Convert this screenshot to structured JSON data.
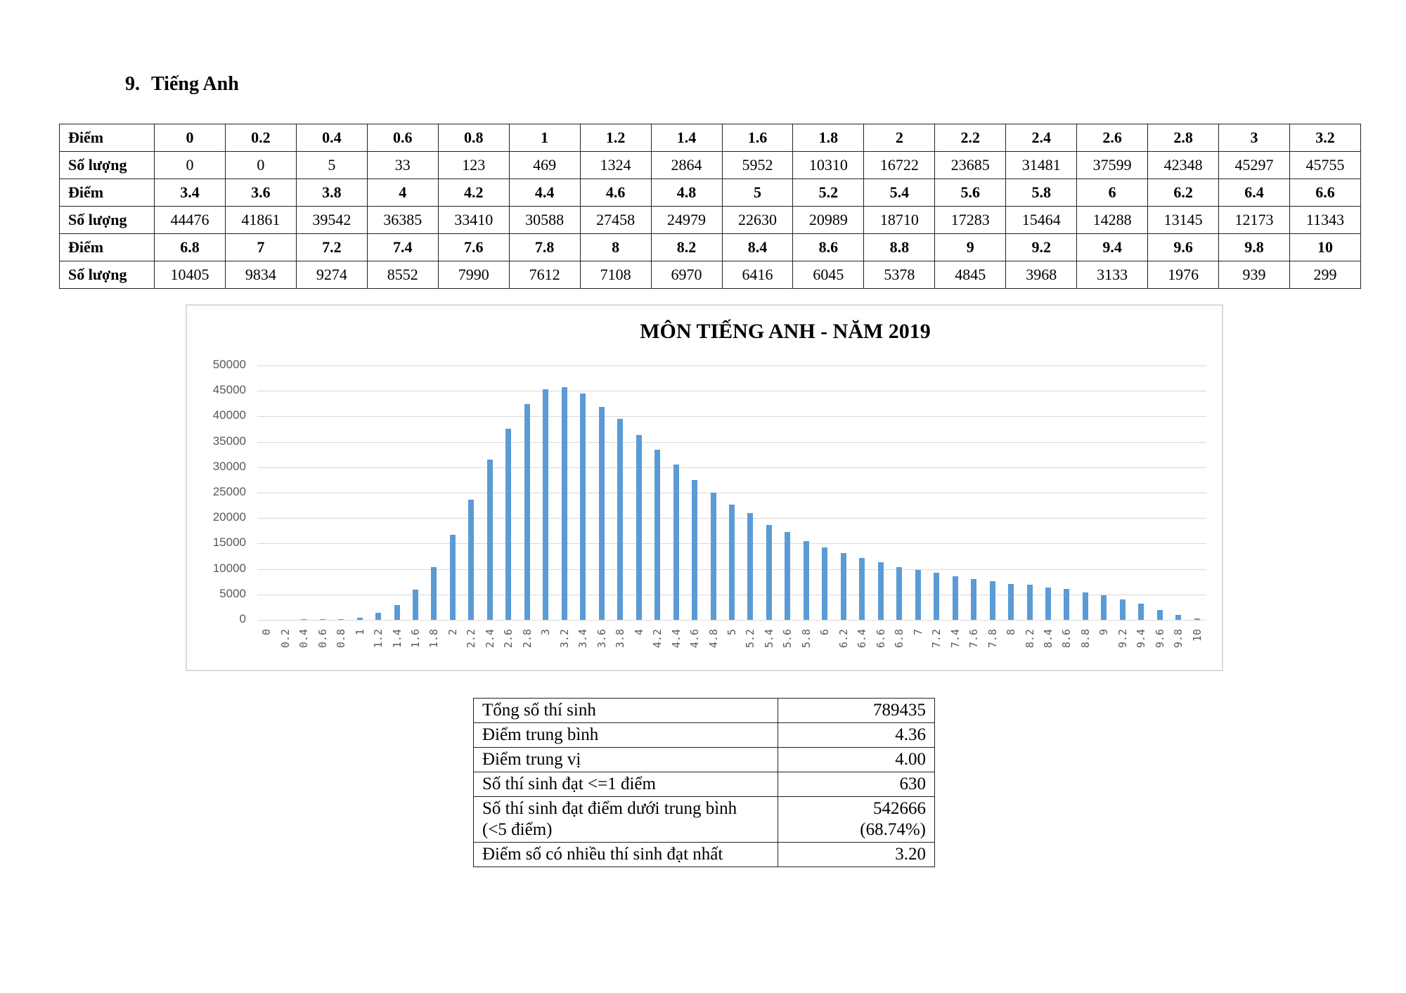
{
  "heading": {
    "number": "9.",
    "title": "Tiếng Anh"
  },
  "score_table": {
    "row_label_score": "Điểm",
    "row_label_count": "Số lượng",
    "blocks": [
      {
        "scores": [
          "0",
          "0.2",
          "0.4",
          "0.6",
          "0.8",
          "1",
          "1.2",
          "1.4",
          "1.6",
          "1.8",
          "2",
          "2.2",
          "2.4",
          "2.6",
          "2.8",
          "3",
          "3.2"
        ],
        "counts": [
          "0",
          "0",
          "5",
          "33",
          "123",
          "469",
          "1324",
          "2864",
          "5952",
          "10310",
          "16722",
          "23685",
          "31481",
          "37599",
          "42348",
          "45297",
          "45755"
        ]
      },
      {
        "scores": [
          "3.4",
          "3.6",
          "3.8",
          "4",
          "4.2",
          "4.4",
          "4.6",
          "4.8",
          "5",
          "5.2",
          "5.4",
          "5.6",
          "5.8",
          "6",
          "6.2",
          "6.4",
          "6.6"
        ],
        "counts": [
          "44476",
          "41861",
          "39542",
          "36385",
          "33410",
          "30588",
          "27458",
          "24979",
          "22630",
          "20989",
          "18710",
          "17283",
          "15464",
          "14288",
          "13145",
          "12173",
          "11343"
        ]
      },
      {
        "scores": [
          "6.8",
          "7",
          "7.2",
          "7.4",
          "7.6",
          "7.8",
          "8",
          "8.2",
          "8.4",
          "8.6",
          "8.8",
          "9",
          "9.2",
          "9.4",
          "9.6",
          "9.8",
          "10"
        ],
        "counts": [
          "10405",
          "9834",
          "9274",
          "8552",
          "7990",
          "7612",
          "7108",
          "6970",
          "6416",
          "6045",
          "5378",
          "4845",
          "3968",
          "3133",
          "1976",
          "939",
          "299"
        ]
      }
    ]
  },
  "chart_data": {
    "type": "bar",
    "title": "MÔN TIẾNG ANH - NĂM 2019",
    "xlabel": "",
    "ylabel": "",
    "ylim": [
      0,
      50000
    ],
    "yticks": [
      "50000",
      "45000",
      "40000",
      "35000",
      "30000",
      "25000",
      "20000",
      "15000",
      "10000",
      "5000",
      "0"
    ],
    "grid": true,
    "legend": null,
    "bar_color": "#5b9bd5",
    "categories": [
      "0",
      "0.2",
      "0.4",
      "0.6",
      "0.8",
      "1",
      "1.2",
      "1.4",
      "1.6",
      "1.8",
      "2",
      "2.2",
      "2.4",
      "2.6",
      "2.8",
      "3",
      "3.2",
      "3.4",
      "3.6",
      "3.8",
      "4",
      "4.2",
      "4.4",
      "4.6",
      "4.8",
      "5",
      "5.2",
      "5.4",
      "5.6",
      "5.8",
      "6",
      "6.2",
      "6.4",
      "6.6",
      "6.8",
      "7",
      "7.2",
      "7.4",
      "7.6",
      "7.8",
      "8",
      "8.2",
      "8.4",
      "8.6",
      "8.8",
      "9",
      "9.2",
      "9.4",
      "9.6",
      "9.8",
      "10"
    ],
    "values": [
      0,
      0,
      5,
      33,
      123,
      469,
      1324,
      2864,
      5952,
      10310,
      16722,
      23685,
      31481,
      37599,
      42348,
      45297,
      45755,
      44476,
      41861,
      39542,
      36385,
      33410,
      30588,
      27458,
      24979,
      22630,
      20989,
      18710,
      17283,
      15464,
      14288,
      13145,
      12173,
      11343,
      10405,
      9834,
      9274,
      8552,
      7990,
      7612,
      7108,
      6970,
      6416,
      6045,
      5378,
      4845,
      3968,
      3133,
      1976,
      939,
      299
    ]
  },
  "summary": {
    "rows": [
      {
        "label": "Tổng số thí sinh",
        "value": "789435"
      },
      {
        "label": "Điểm trung bình",
        "value": "4.36"
      },
      {
        "label": "Điểm trung vị",
        "value": "4.00"
      },
      {
        "label": "Số thí sinh đạt <=1 điểm",
        "value": "630"
      },
      {
        "label_line1": "Số thí sinh đạt điểm dưới trung bình",
        "label_line2": "(<5 điểm)",
        "value_line1": "542666",
        "value_line2": "(68.74%)"
      },
      {
        "label": "Điểm số có nhiều thí sinh đạt nhất",
        "value": "3.20"
      }
    ]
  }
}
